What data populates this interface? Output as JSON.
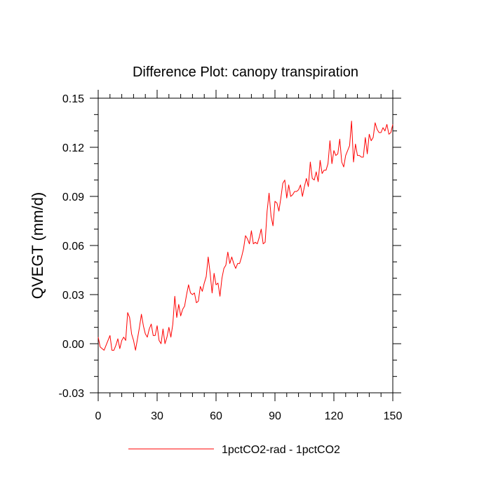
{
  "chart_data": {
    "type": "line",
    "title": "Difference Plot: canopy transpiration",
    "xlabel": "",
    "ylabel": "QVEGT  (mm/d)",
    "xlim": [
      0,
      150
    ],
    "ylim": [
      -0.03,
      0.15
    ],
    "x_ticks": [
      0,
      30,
      60,
      90,
      120,
      150
    ],
    "y_ticks": [
      -0.03,
      0.0,
      0.03,
      0.06,
      0.09,
      0.12,
      0.15
    ],
    "x_tick_labels": [
      "0",
      "30",
      "60",
      "90",
      "120",
      "150"
    ],
    "y_tick_labels": [
      "-0.03",
      "0.00",
      "0.03",
      "0.06",
      "0.09",
      "0.12",
      "0.15"
    ],
    "legend_position": "bottom",
    "grid": false,
    "series": [
      {
        "name": "1pctCO2-rad - 1pctCO2",
        "color": "#ff0000",
        "x": [
          0,
          1,
          2,
          3,
          4,
          5,
          6,
          7,
          8,
          9,
          10,
          11,
          12,
          13,
          14,
          15,
          16,
          17,
          18,
          19,
          20,
          21,
          22,
          23,
          24,
          25,
          26,
          27,
          28,
          29,
          30,
          31,
          32,
          33,
          34,
          35,
          36,
          37,
          38,
          39,
          40,
          41,
          42,
          43,
          44,
          45,
          46,
          47,
          48,
          49,
          50,
          51,
          52,
          53,
          54,
          55,
          56,
          57,
          58,
          59,
          60,
          61,
          62,
          63,
          64,
          65,
          66,
          67,
          68,
          69,
          70,
          71,
          72,
          73,
          74,
          75,
          76,
          77,
          78,
          79,
          80,
          81,
          82,
          83,
          84,
          85,
          86,
          87,
          88,
          89,
          90,
          91,
          92,
          93,
          94,
          95,
          96,
          97,
          98,
          99,
          100,
          101,
          102,
          103,
          104,
          105,
          106,
          107,
          108,
          109,
          110,
          111,
          112,
          113,
          114,
          115,
          116,
          117,
          118,
          119,
          120,
          121,
          122,
          123,
          124,
          125,
          126,
          127,
          128,
          129,
          130,
          131,
          132,
          133,
          134,
          135,
          136,
          137,
          138,
          139,
          140,
          141,
          142,
          143,
          144,
          145,
          146,
          147,
          148,
          149,
          150
        ],
        "values": [
          0.004,
          -0.002,
          -0.003,
          -0.004,
          -0.001,
          0.002,
          0.005,
          -0.004,
          -0.004,
          -0.001,
          0.003,
          -0.003,
          0.002,
          0.004,
          0.002,
          0.019,
          0.016,
          0.006,
          0.002,
          -0.004,
          0.003,
          0.01,
          0.018,
          0.011,
          0.006,
          0.004,
          0.009,
          0.012,
          0.005,
          0.005,
          0.011,
          0.002,
          0.0,
          0.009,
          0.0,
          0.004,
          0.01,
          0.004,
          0.012,
          0.029,
          0.016,
          0.024,
          0.017,
          0.021,
          0.023,
          0.03,
          0.036,
          0.031,
          0.03,
          0.031,
          0.025,
          0.026,
          0.035,
          0.032,
          0.037,
          0.041,
          0.053,
          0.043,
          0.031,
          0.043,
          0.036,
          0.037,
          0.029,
          0.04,
          0.046,
          0.048,
          0.056,
          0.049,
          0.053,
          0.049,
          0.046,
          0.049,
          0.049,
          0.053,
          0.058,
          0.066,
          0.064,
          0.061,
          0.069,
          0.061,
          0.062,
          0.061,
          0.065,
          0.07,
          0.061,
          0.062,
          0.081,
          0.092,
          0.078,
          0.072,
          0.087,
          0.086,
          0.081,
          0.089,
          0.098,
          0.1,
          0.089,
          0.097,
          0.09,
          0.091,
          0.093,
          0.093,
          0.094,
          0.097,
          0.09,
          0.096,
          0.101,
          0.096,
          0.111,
          0.101,
          0.1,
          0.105,
          0.099,
          0.112,
          0.104,
          0.106,
          0.106,
          0.11,
          0.124,
          0.11,
          0.118,
          0.115,
          0.116,
          0.125,
          0.111,
          0.108,
          0.115,
          0.118,
          0.121,
          0.136,
          0.111,
          0.122,
          0.115,
          0.115,
          0.114,
          0.114,
          0.126,
          0.116,
          0.128,
          0.124,
          0.126,
          0.135,
          0.131,
          0.129,
          0.129,
          0.132,
          0.13,
          0.134,
          0.128,
          0.129,
          0.134
        ]
      }
    ]
  }
}
